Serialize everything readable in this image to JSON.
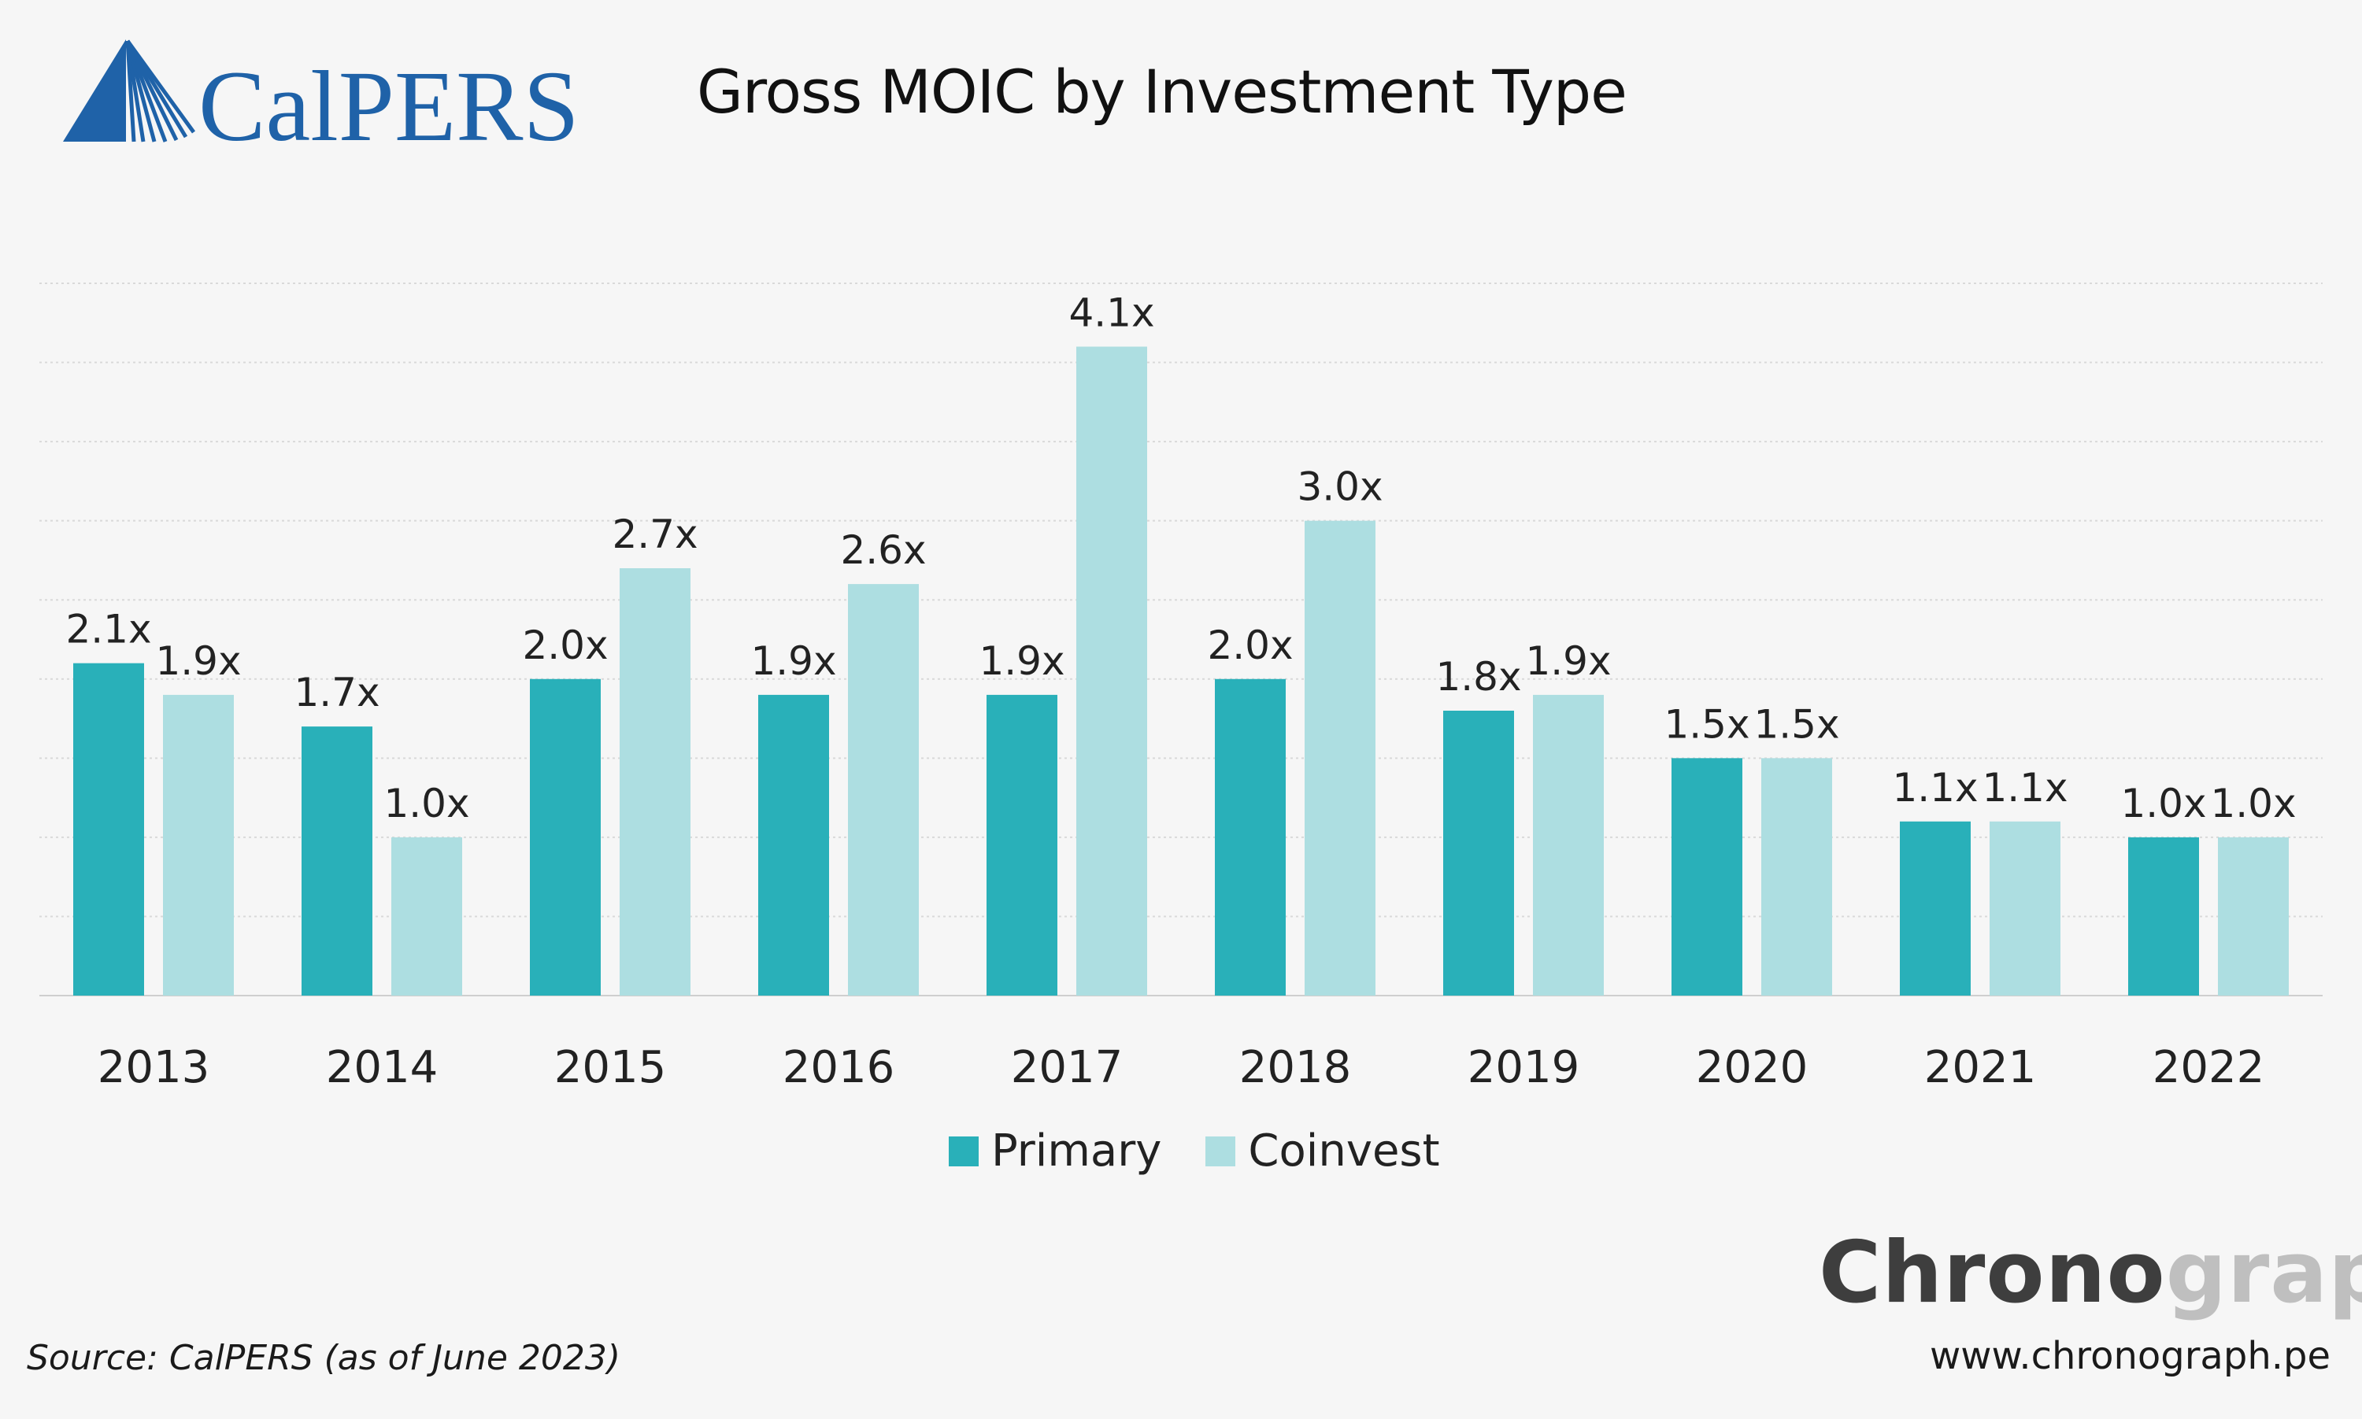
{
  "logo": {
    "text": "CalPERS",
    "color": "#1f62a8"
  },
  "title": "Gross MOIC by Investment Type",
  "chart_data": {
    "type": "bar",
    "title": "Gross MOIC by Investment Type",
    "xlabel": "",
    "ylabel": "",
    "ylim": [
      0,
      4.5
    ],
    "grid": true,
    "legend_position": "bottom",
    "categories": [
      "2013",
      "2014",
      "2015",
      "2016",
      "2017",
      "2018",
      "2019",
      "2020",
      "2021",
      "2022"
    ],
    "series": [
      {
        "name": "Primary",
        "color": "#29b0b9",
        "values": [
          2.1,
          1.7,
          2.0,
          1.9,
          1.9,
          2.0,
          1.8,
          1.5,
          1.1,
          1.0
        ],
        "labels": [
          "2.1x",
          "1.7x",
          "2.0x",
          "1.9x",
          "1.9x",
          "2.0x",
          "1.8x",
          "1.5x",
          "1.1x",
          "1.0x"
        ]
      },
      {
        "name": "Coinvest",
        "color": "#addee1",
        "values": [
          1.9,
          1.0,
          2.7,
          2.6,
          4.1,
          3.0,
          1.9,
          1.5,
          1.1,
          1.0
        ],
        "labels": [
          "1.9x",
          "1.0x",
          "2.7x",
          "2.6x",
          "4.1x",
          "3.0x",
          "1.9x",
          "1.5x",
          "1.1x",
          "1.0x"
        ]
      }
    ]
  },
  "legend": {
    "primary_label": "Primary",
    "coinvest_label": "Coinvest"
  },
  "brand": {
    "part1": "Chrono",
    "part2": "graph"
  },
  "website": "www.chronograph.pe",
  "source": "Source: CalPERS (as of June 2023)"
}
